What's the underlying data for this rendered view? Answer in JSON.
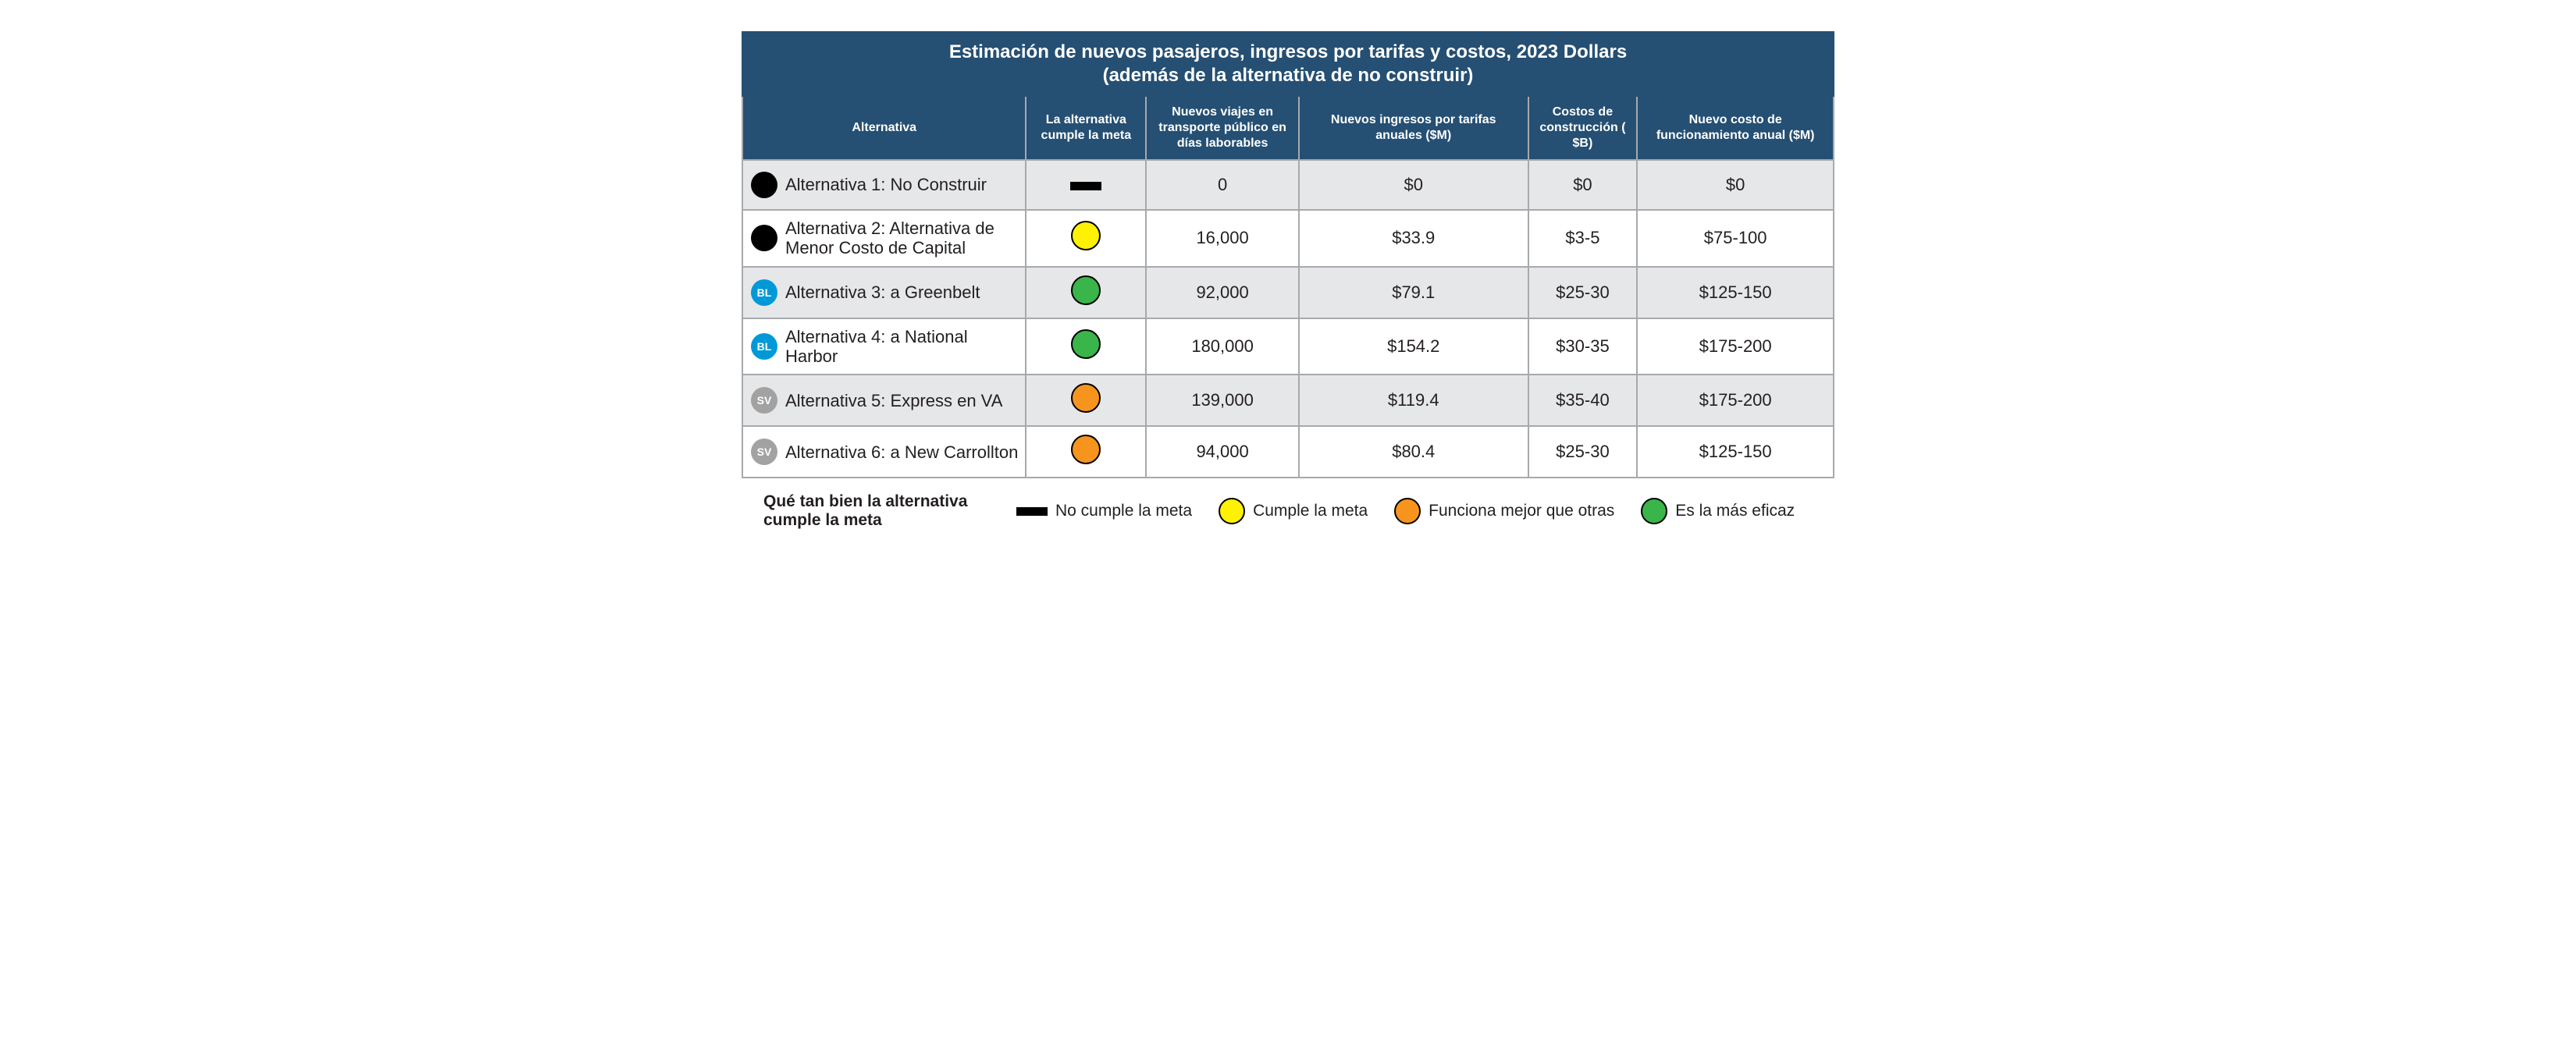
{
  "title_line1": "Estimación de nuevos pasajeros, ingresos por tarifas y costos, 2023 Dollars",
  "title_line2": "(además de la alternativa de no construir)",
  "columns": {
    "alt": "Alternativa",
    "meets": "La alternativa cumple la meta",
    "trips": "Nuevos viajes en transporte público en días laborables",
    "rev": "Nuevos ingresos por tarifas anuales ($M)",
    "construct": "Costos de construcción ( $B)",
    "oper": "Nuevo costo de funcionamiento anual  ($M)"
  },
  "score_colors": {
    "none": {
      "type": "bar",
      "fill": "#000000"
    },
    "yellow": {
      "type": "dot",
      "fill": "#fff200"
    },
    "orange": {
      "type": "dot",
      "fill": "#f7941d"
    },
    "green": {
      "type": "dot",
      "fill": "#39b54a"
    }
  },
  "rows": [
    {
      "icon": "BLACK",
      "icon_text": "",
      "label": "Alternativa 1: No Construir",
      "score": "none",
      "trips": "0",
      "rev": "$0",
      "construct": "$0",
      "oper": "$0"
    },
    {
      "icon": "BLACK",
      "icon_text": "",
      "label": "Alternativa 2: Alternativa de Menor Costo de Capital",
      "score": "yellow",
      "trips": "16,000",
      "rev": "$33.9",
      "construct": "$3-5",
      "oper": "$75-100"
    },
    {
      "icon": "BL",
      "icon_text": "BL",
      "label": "Alternativa 3: a Greenbelt",
      "score": "green",
      "trips": "92,000",
      "rev": "$79.1",
      "construct": "$25-30",
      "oper": "$125-150"
    },
    {
      "icon": "BL",
      "icon_text": "BL",
      "label": "Alternativa 4: a National Harbor",
      "score": "green",
      "trips": "180,000",
      "rev": "$154.2",
      "construct": "$30-35",
      "oper": "$175-200"
    },
    {
      "icon": "SV",
      "icon_text": "SV",
      "label": "Alternativa 5: Express en VA",
      "score": "orange",
      "trips": "139,000",
      "rev": "$119.4",
      "construct": "$35-40",
      "oper": "$175-200"
    },
    {
      "icon": "SV",
      "icon_text": "SV",
      "label": "Alternativa 6: a New Carrollton",
      "score": "orange",
      "trips": "94,000",
      "rev": "$80.4",
      "construct": "$25-30",
      "oper": "$125-150"
    }
  ],
  "legend": {
    "title": "Qué tan bien la alternativa cumple la meta",
    "items": [
      {
        "score": "none",
        "label": "No cumple la meta"
      },
      {
        "score": "yellow",
        "label": "Cumple la meta"
      },
      {
        "score": "orange",
        "label": "Funciona mejor que otras"
      },
      {
        "score": "green",
        "label": "Es la más eficaz"
      }
    ]
  }
}
